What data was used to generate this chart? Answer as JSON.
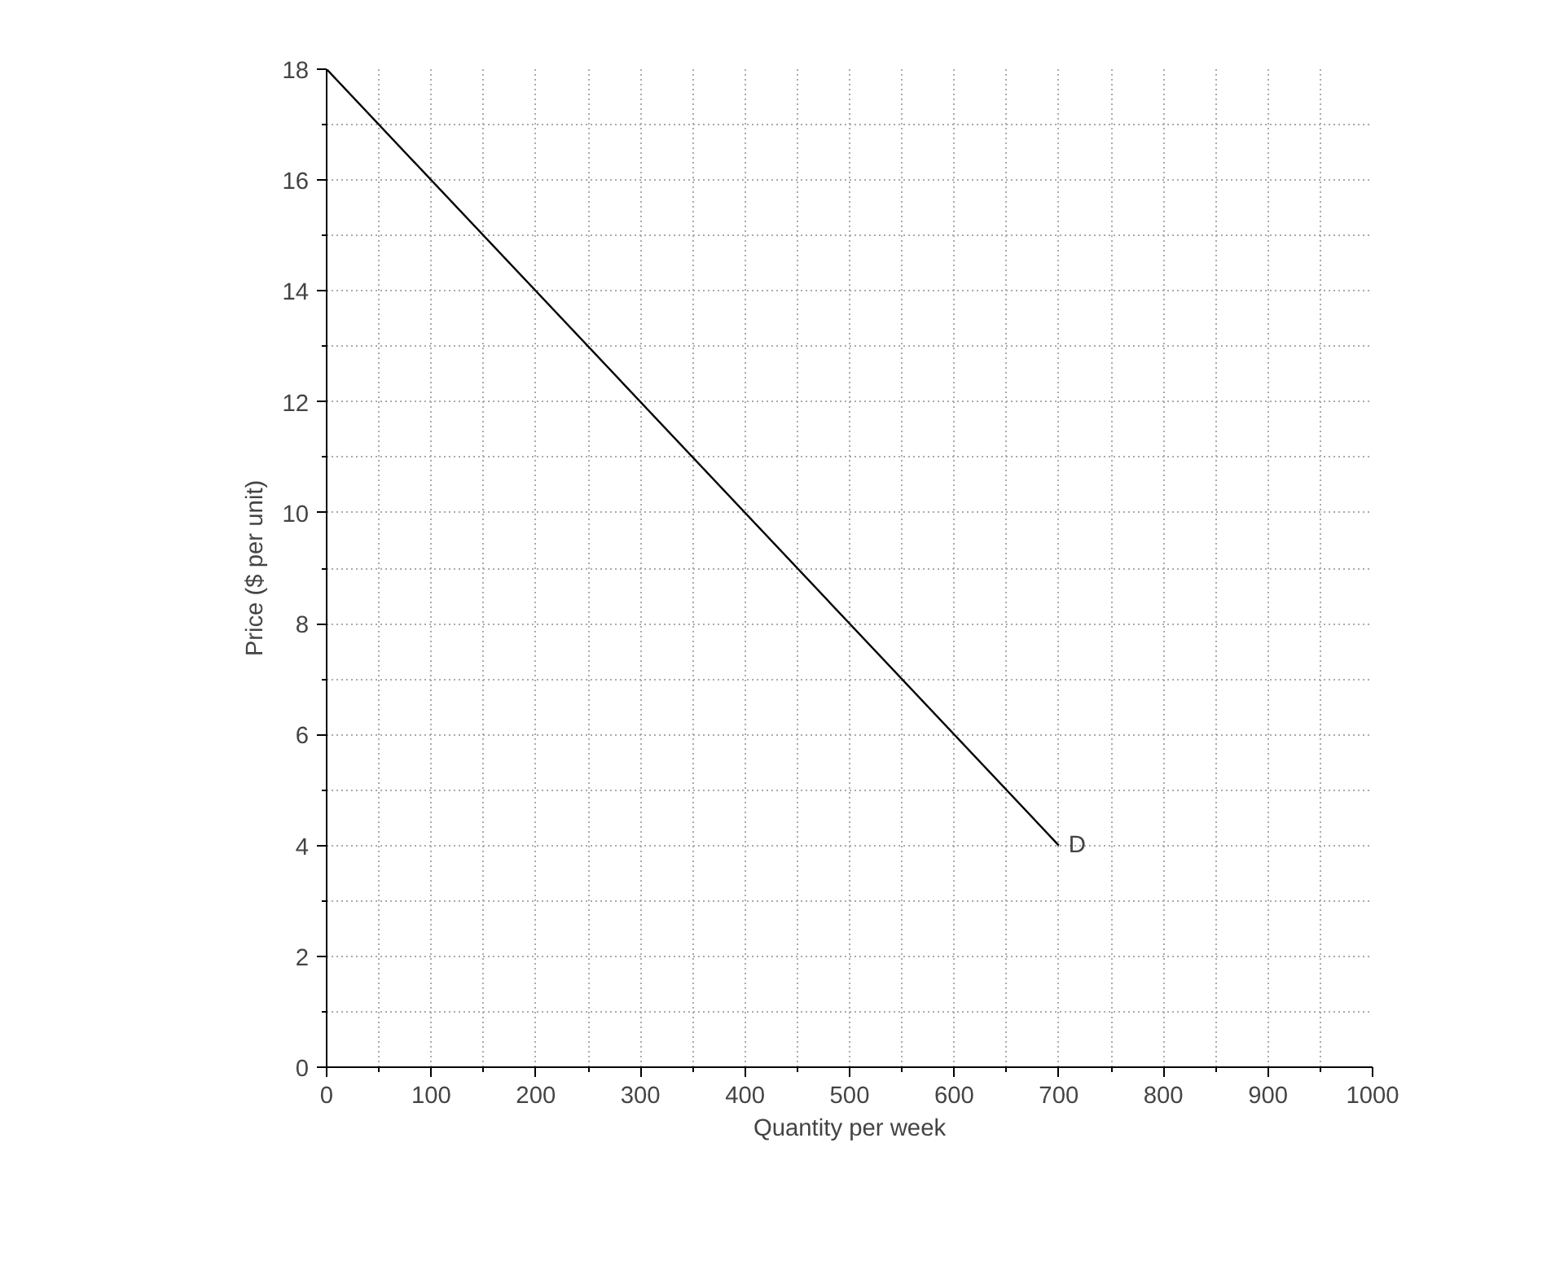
{
  "chart_data": {
    "type": "line",
    "xlabel": "Quantity per week",
    "ylabel": "Price ($ per unit)",
    "x": [
      0,
      700
    ],
    "series": [
      {
        "color": "#000000",
        "values": [
          18,
          4
        ]
      }
    ],
    "xlim": [
      0,
      1000
    ],
    "ylim": [
      0,
      18
    ],
    "xticks": [
      0,
      100,
      200,
      300,
      400,
      500,
      600,
      700,
      800,
      900,
      1000
    ],
    "yticks": [
      0,
      2,
      4,
      6,
      8,
      10,
      12,
      14,
      16,
      18
    ],
    "grid": true,
    "marker": "none",
    "line_style": "solid",
    "annotations": [
      {
        "text": "D",
        "x": 700,
        "y": 4
      }
    ]
  }
}
